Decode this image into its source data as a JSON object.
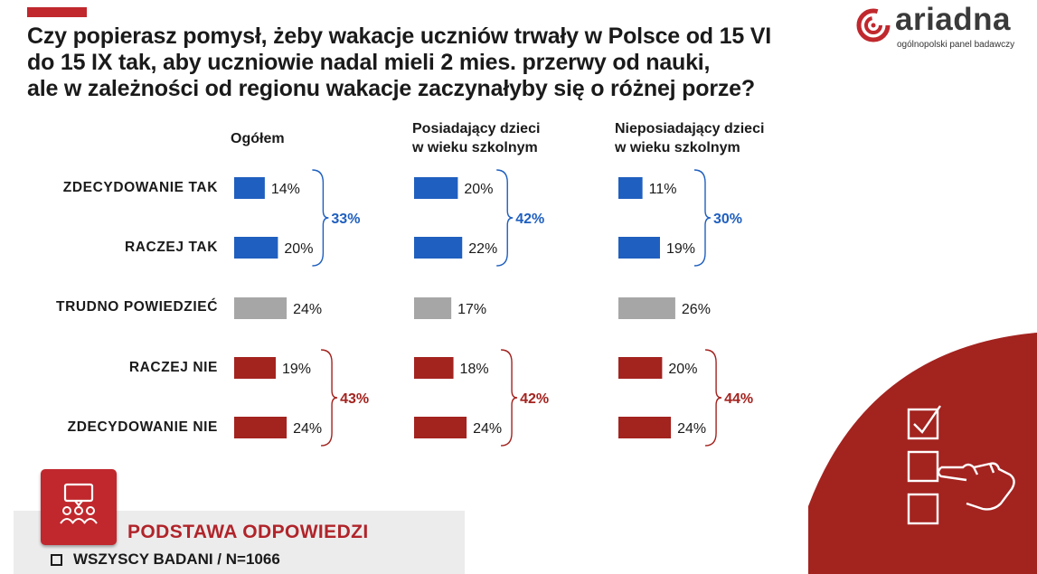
{
  "header": {
    "title_lines": [
      "Czy popierasz pomysł, żeby wakacje uczniów trwały w Polsce od 15 VI",
      "do 15 IX tak, aby uczniowie nadal mieli 2 mies. przerwy od nauki,",
      "ale w zależności od regionu wakacje zaczynałyby się o różnej porze?"
    ]
  },
  "logo": {
    "name": "ariadna",
    "subtitle": "ogólnopolski panel badawczy",
    "icon": "ariadna-spiral-logo",
    "color": "#c0282d"
  },
  "chart_data": {
    "type": "bar",
    "orientation": "horizontal",
    "categories": [
      "ZDECYDOWANIE TAK",
      "RACZEJ TAK",
      "TRUDNO POWIEDZIEĆ",
      "RACZEJ NIE",
      "ZDECYDOWANIE NIE"
    ],
    "category_colors": [
      "#1f5fbf",
      "#1f5fbf",
      "#a6a6a6",
      "#a3231f",
      "#a3231f"
    ],
    "series": [
      {
        "name": "Ogółem",
        "name_lines": [
          "Ogółem"
        ],
        "values": [
          14,
          20,
          24,
          19,
          24
        ],
        "value_labels": [
          "14%",
          "20%",
          "24%",
          "19%",
          "24%"
        ],
        "yes_total": "33%",
        "no_total": "43%"
      },
      {
        "name": "Posiadający dzieci w wieku szkolnym",
        "name_lines": [
          "Posiadający dzieci",
          "w wieku szkolnym"
        ],
        "values": [
          20,
          22,
          17,
          18,
          24
        ],
        "value_labels": [
          "20%",
          "22%",
          "17%",
          "18%",
          "24%"
        ],
        "yes_total": "42%",
        "no_total": "42%"
      },
      {
        "name": "Nieposiadający dzieci w wieku szkolnym",
        "name_lines": [
          "Nieposiadający dzieci",
          "w wieku szkolnym"
        ],
        "values": [
          11,
          19,
          26,
          20,
          24
        ],
        "value_labels": [
          "11%",
          "19%",
          "26%",
          "20%",
          "24%"
        ],
        "yes_total": "30%",
        "no_total": "44%"
      }
    ],
    "yes_color": "#1f5fbf",
    "no_color": "#a3231f",
    "neutral_color": "#a6a6a6"
  },
  "base": {
    "title": "PODSTAWA ODPOWIEDZI",
    "item": "WSZYSCY BADANI / N=1066",
    "icon": "group-discussion-icon"
  },
  "decoration": {
    "icon": "checklist-hand-icon",
    "background_color": "#a3231f"
  }
}
